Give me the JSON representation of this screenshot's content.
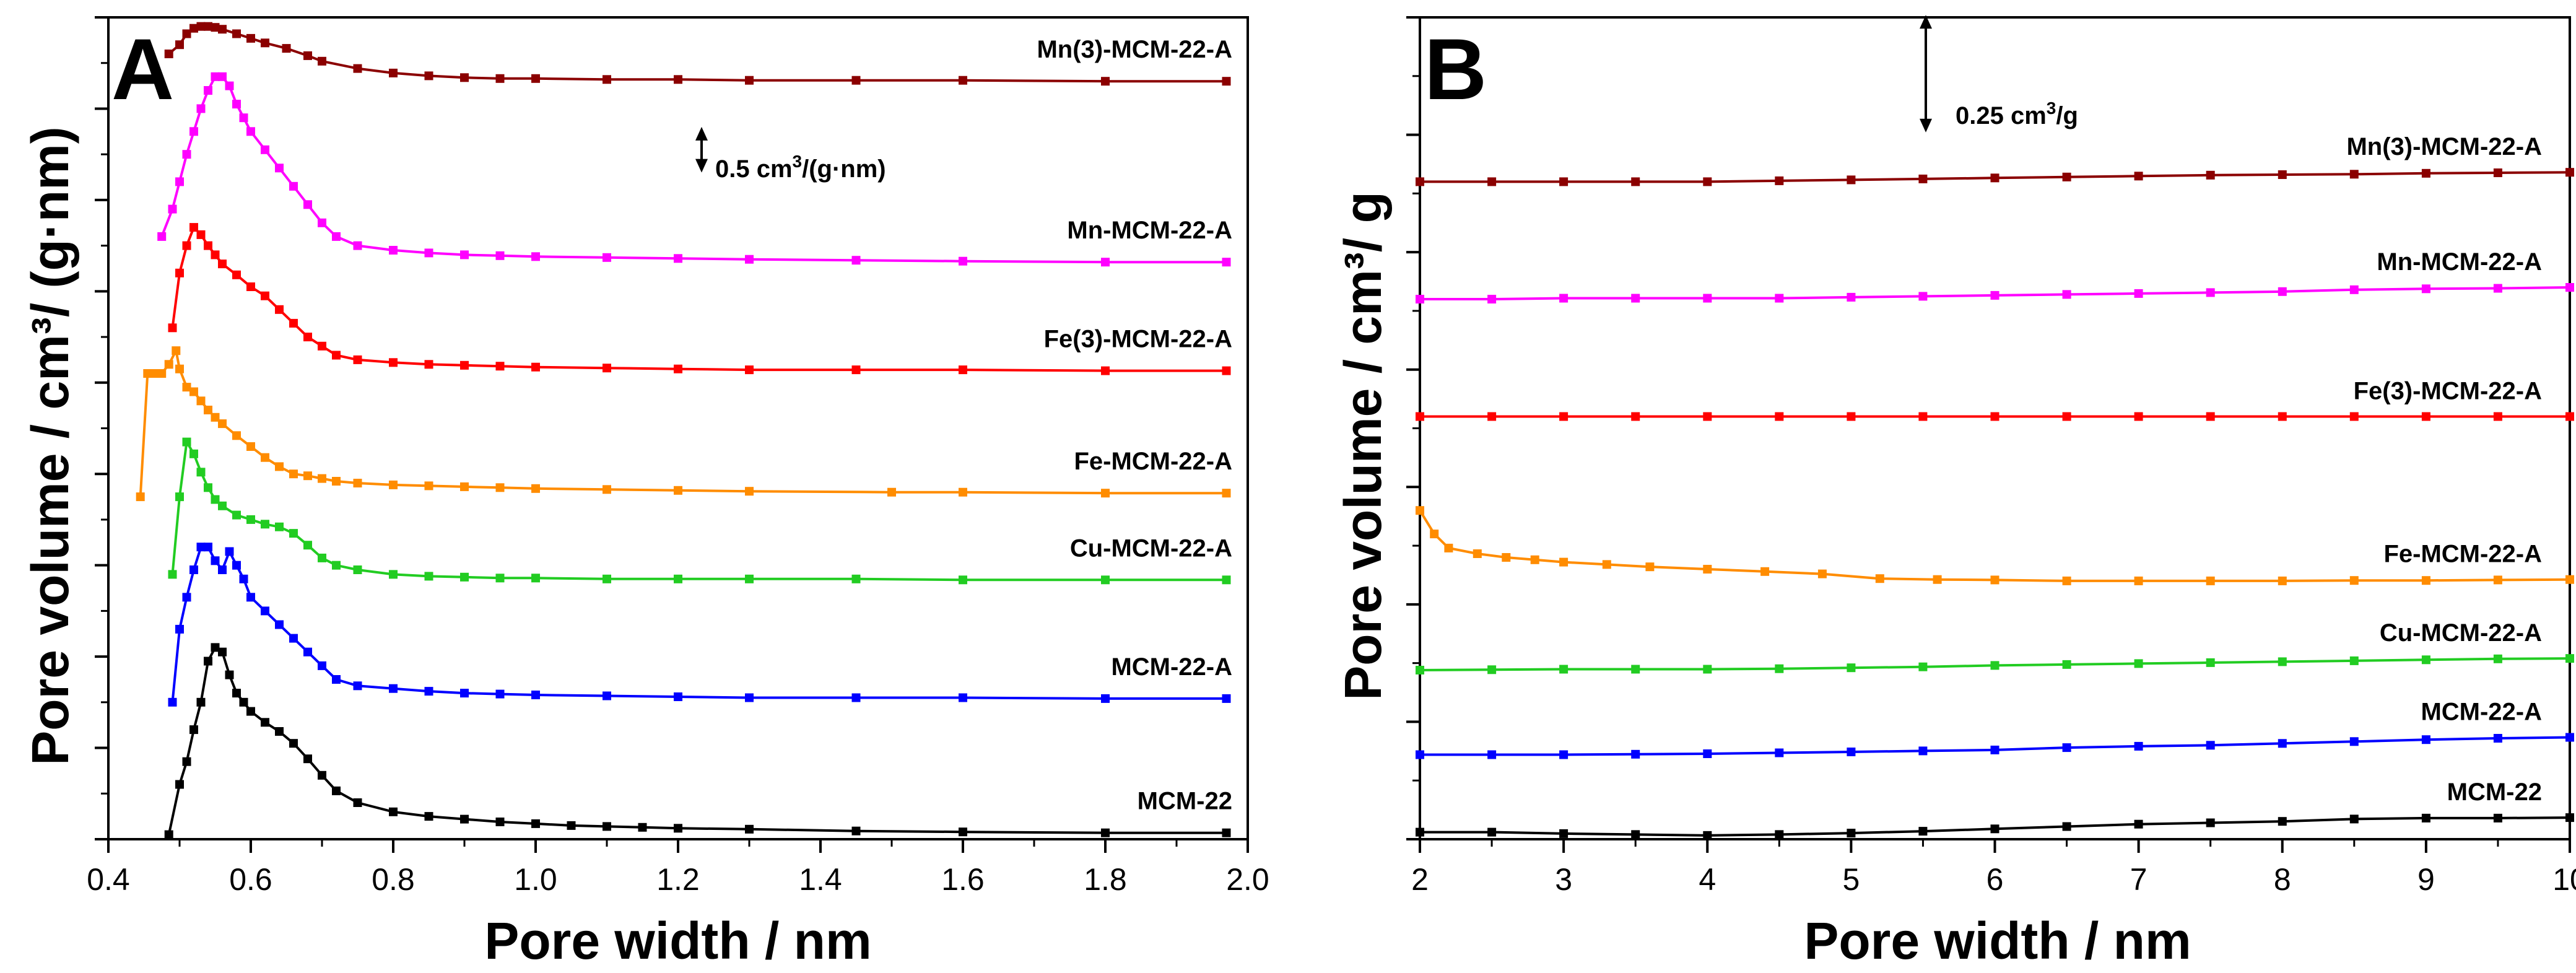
{
  "chart_data": [
    {
      "panel": "A",
      "type": "line",
      "xlabel": "Pore width / nm",
      "ylabel": "Pore volume / cm³/ (g·nm)",
      "xlim": [
        0.4,
        2.0
      ],
      "xticks": [
        "0.4",
        "0.6",
        "0.8",
        "1.0",
        "1.2",
        "1.4",
        "1.6",
        "1.8",
        "2.0"
      ],
      "ylim": [
        0,
        9
      ],
      "y_tick_labels_shown": false,
      "scale_bar": {
        "label_prefix": "0.5 cm",
        "superscript": "3",
        "label_suffix": "/(g·nm)",
        "value": 0.5
      },
      "series": [
        {
          "name": "MCM-22",
          "color": "#000000",
          "x": [
            0.485,
            0.5,
            0.51,
            0.52,
            0.53,
            0.54,
            0.55,
            0.56,
            0.57,
            0.58,
            0.59,
            0.6,
            0.62,
            0.64,
            0.66,
            0.68,
            0.7,
            0.72,
            0.75,
            0.8,
            0.85,
            0.9,
            0.95,
            1.0,
            1.05,
            1.1,
            1.15,
            1.2,
            1.3,
            1.45,
            1.6,
            1.8,
            1.97
          ],
          "y": [
            0.05,
            0.6,
            0.85,
            1.2,
            1.5,
            1.95,
            2.1,
            2.05,
            1.8,
            1.6,
            1.5,
            1.4,
            1.28,
            1.18,
            1.05,
            0.88,
            0.7,
            0.53,
            0.4,
            0.3,
            0.25,
            0.22,
            0.19,
            0.17,
            0.15,
            0.14,
            0.13,
            0.12,
            0.11,
            0.09,
            0.08,
            0.07,
            0.07
          ]
        },
        {
          "name": "MCM-22-A",
          "color": "#0000ff",
          "x": [
            0.49,
            0.5,
            0.51,
            0.52,
            0.53,
            0.54,
            0.55,
            0.56,
            0.57,
            0.58,
            0.59,
            0.6,
            0.62,
            0.64,
            0.66,
            0.68,
            0.7,
            0.72,
            0.75,
            0.8,
            0.85,
            0.9,
            0.95,
            1.0,
            1.1,
            1.2,
            1.3,
            1.45,
            1.6,
            1.8,
            1.97
          ],
          "y": [
            1.5,
            2.3,
            2.65,
            2.95,
            3.2,
            3.2,
            3.05,
            2.95,
            3.15,
            3.0,
            2.85,
            2.65,
            2.5,
            2.35,
            2.2,
            2.05,
            1.9,
            1.75,
            1.68,
            1.65,
            1.62,
            1.6,
            1.59,
            1.58,
            1.57,
            1.56,
            1.55,
            1.55,
            1.55,
            1.54,
            1.54
          ]
        },
        {
          "name": "Cu-MCM-22-A",
          "color": "#22cc22",
          "x": [
            0.49,
            0.5,
            0.51,
            0.52,
            0.53,
            0.54,
            0.55,
            0.56,
            0.58,
            0.6,
            0.62,
            0.64,
            0.66,
            0.68,
            0.7,
            0.72,
            0.75,
            0.8,
            0.85,
            0.9,
            0.95,
            1.0,
            1.1,
            1.2,
            1.3,
            1.45,
            1.6,
            1.8,
            1.97
          ],
          "y": [
            2.9,
            3.75,
            4.35,
            4.22,
            4.02,
            3.85,
            3.72,
            3.65,
            3.55,
            3.5,
            3.45,
            3.42,
            3.35,
            3.22,
            3.08,
            3.0,
            2.95,
            2.9,
            2.88,
            2.87,
            2.86,
            2.86,
            2.85,
            2.85,
            2.85,
            2.85,
            2.84,
            2.84,
            2.84
          ]
        },
        {
          "name": "Fe-MCM-22-A",
          "color": "#ff8c00",
          "x": [
            0.445,
            0.455,
            0.465,
            0.475,
            0.485,
            0.495,
            0.5,
            0.51,
            0.52,
            0.53,
            0.54,
            0.55,
            0.56,
            0.58,
            0.6,
            0.62,
            0.64,
            0.66,
            0.68,
            0.7,
            0.72,
            0.75,
            0.8,
            0.85,
            0.9,
            0.95,
            1.0,
            1.1,
            1.2,
            1.3,
            1.5,
            1.6,
            1.8,
            1.97
          ],
          "y": [
            3.75,
            5.1,
            5.1,
            5.1,
            5.2,
            5.35,
            5.15,
            4.95,
            4.9,
            4.8,
            4.7,
            4.62,
            4.55,
            4.42,
            4.3,
            4.18,
            4.08,
            4.0,
            3.98,
            3.95,
            3.92,
            3.9,
            3.88,
            3.87,
            3.86,
            3.85,
            3.84,
            3.83,
            3.82,
            3.81,
            3.8,
            3.8,
            3.79,
            3.79
          ]
        },
        {
          "name": "Fe(3)-MCM-22-A",
          "color": "#ff0000",
          "x": [
            0.49,
            0.5,
            0.51,
            0.52,
            0.53,
            0.54,
            0.55,
            0.56,
            0.58,
            0.6,
            0.62,
            0.64,
            0.66,
            0.68,
            0.7,
            0.72,
            0.75,
            0.8,
            0.85,
            0.9,
            0.95,
            1.0,
            1.1,
            1.2,
            1.3,
            1.45,
            1.6,
            1.8,
            1.97
          ],
          "y": [
            5.6,
            6.2,
            6.5,
            6.7,
            6.62,
            6.5,
            6.4,
            6.3,
            6.18,
            6.05,
            5.95,
            5.8,
            5.65,
            5.5,
            5.4,
            5.3,
            5.25,
            5.22,
            5.2,
            5.19,
            5.18,
            5.17,
            5.16,
            5.15,
            5.14,
            5.14,
            5.14,
            5.13,
            5.13
          ]
        },
        {
          "name": "Mn-MCM-22-A",
          "color": "#ff00ff",
          "x": [
            0.475,
            0.49,
            0.5,
            0.51,
            0.52,
            0.53,
            0.54,
            0.55,
            0.56,
            0.57,
            0.58,
            0.59,
            0.6,
            0.62,
            0.64,
            0.66,
            0.68,
            0.7,
            0.72,
            0.75,
            0.8,
            0.85,
            0.9,
            0.95,
            1.0,
            1.1,
            1.2,
            1.3,
            1.45,
            1.6,
            1.8,
            1.97
          ],
          "y": [
            6.6,
            6.9,
            7.2,
            7.5,
            7.75,
            8.0,
            8.2,
            8.35,
            8.35,
            8.25,
            8.05,
            7.9,
            7.75,
            7.55,
            7.35,
            7.15,
            6.95,
            6.75,
            6.6,
            6.5,
            6.45,
            6.42,
            6.4,
            6.39,
            6.38,
            6.37,
            6.36,
            6.35,
            6.34,
            6.33,
            6.32,
            6.32
          ]
        },
        {
          "name": "Mn(3)-MCM-22-A",
          "color": "#8b0000",
          "x": [
            0.485,
            0.5,
            0.51,
            0.52,
            0.53,
            0.54,
            0.55,
            0.56,
            0.58,
            0.6,
            0.62,
            0.65,
            0.68,
            0.7,
            0.75,
            0.8,
            0.85,
            0.9,
            0.95,
            1.0,
            1.1,
            1.2,
            1.3,
            1.45,
            1.6,
            1.8,
            1.97
          ],
          "y": [
            8.6,
            8.7,
            8.82,
            8.88,
            8.9,
            8.9,
            8.89,
            8.87,
            8.82,
            8.77,
            8.72,
            8.66,
            8.58,
            8.52,
            8.44,
            8.39,
            8.36,
            8.34,
            8.33,
            8.33,
            8.32,
            8.32,
            8.31,
            8.31,
            8.31,
            8.3,
            8.3
          ]
        }
      ]
    },
    {
      "panel": "B",
      "type": "line",
      "xlabel": "Pore width / nm",
      "ylabel": "Pore volume / cm³/ g",
      "xlim": [
        2,
        10
      ],
      "xticks": [
        "2",
        "3",
        "4",
        "5",
        "6",
        "7",
        "8",
        "9",
        "10"
      ],
      "ylim": [
        0,
        1.75
      ],
      "y_tick_labels_shown": false,
      "scale_bar": {
        "label_prefix": "0.25 cm",
        "superscript": "3",
        "label_suffix": "/g",
        "value": 0.25
      },
      "series": [
        {
          "name": "MCM-22",
          "color": "#000000",
          "x": [
            2.0,
            2.5,
            3.0,
            3.5,
            4.0,
            4.5,
            5.0,
            5.5,
            6.0,
            6.5,
            7.0,
            7.5,
            8.0,
            8.5,
            9.0,
            9.5,
            10.0
          ],
          "y": [
            0.015,
            0.015,
            0.012,
            0.01,
            0.008,
            0.01,
            0.013,
            0.017,
            0.022,
            0.027,
            0.032,
            0.035,
            0.038,
            0.043,
            0.045,
            0.045,
            0.046
          ]
        },
        {
          "name": "MCM-22-A",
          "color": "#0000ff",
          "x": [
            2.0,
            2.5,
            3.0,
            3.5,
            4.0,
            4.5,
            5.0,
            5.5,
            6.0,
            6.5,
            7.0,
            7.5,
            8.0,
            8.5,
            9.0,
            9.5,
            10.0
          ],
          "y": [
            0.18,
            0.18,
            0.18,
            0.181,
            0.182,
            0.184,
            0.186,
            0.188,
            0.19,
            0.195,
            0.198,
            0.2,
            0.204,
            0.208,
            0.212,
            0.215,
            0.217
          ]
        },
        {
          "name": "Cu-MCM-22-A",
          "color": "#22cc22",
          "x": [
            2.0,
            2.5,
            3.0,
            3.5,
            4.0,
            4.5,
            5.0,
            5.5,
            6.0,
            6.5,
            7.0,
            7.5,
            8.0,
            8.5,
            9.0,
            9.5,
            10.0
          ],
          "y": [
            0.36,
            0.361,
            0.362,
            0.362,
            0.362,
            0.363,
            0.365,
            0.367,
            0.37,
            0.372,
            0.374,
            0.376,
            0.378,
            0.38,
            0.382,
            0.384,
            0.385
          ]
        },
        {
          "name": "Fe-MCM-22-A",
          "color": "#ff8c00",
          "x": [
            2.0,
            2.1,
            2.2,
            2.4,
            2.6,
            2.8,
            3.0,
            3.3,
            3.6,
            4.0,
            4.4,
            4.8,
            5.2,
            5.6,
            6.0,
            6.5,
            7.0,
            7.5,
            8.0,
            8.5,
            9.0,
            9.5,
            10.0
          ],
          "y": [
            0.7,
            0.65,
            0.62,
            0.608,
            0.6,
            0.595,
            0.59,
            0.585,
            0.58,
            0.575,
            0.57,
            0.565,
            0.555,
            0.553,
            0.552,
            0.55,
            0.55,
            0.55,
            0.55,
            0.551,
            0.551,
            0.552,
            0.553
          ]
        },
        {
          "name": "Fe(3)-MCM-22-A",
          "color": "#ff0000",
          "x": [
            2.0,
            2.5,
            3.0,
            3.5,
            4.0,
            4.5,
            5.0,
            5.5,
            6.0,
            6.5,
            7.0,
            7.5,
            8.0,
            8.5,
            9.0,
            9.5,
            10.0
          ],
          "y": [
            0.9,
            0.9,
            0.9,
            0.9,
            0.9,
            0.9,
            0.9,
            0.9,
            0.9,
            0.9,
            0.9,
            0.9,
            0.9,
            0.9,
            0.9,
            0.9,
            0.9
          ]
        },
        {
          "name": "Mn-MCM-22-A",
          "color": "#ff00ff",
          "x": [
            2.0,
            2.5,
            3.0,
            3.5,
            4.0,
            4.5,
            5.0,
            5.5,
            6.0,
            6.5,
            7.0,
            7.5,
            8.0,
            8.5,
            9.0,
            9.5,
            10.0
          ],
          "y": [
            1.15,
            1.15,
            1.152,
            1.152,
            1.152,
            1.152,
            1.154,
            1.156,
            1.158,
            1.16,
            1.162,
            1.164,
            1.166,
            1.17,
            1.172,
            1.173,
            1.175
          ]
        },
        {
          "name": "Mn(3)-MCM-22-A",
          "color": "#8b0000",
          "x": [
            2.0,
            2.5,
            3.0,
            3.5,
            4.0,
            4.5,
            5.0,
            5.5,
            6.0,
            6.5,
            7.0,
            7.5,
            8.0,
            8.5,
            9.0,
            9.5,
            10.0
          ],
          "y": [
            1.4,
            1.4,
            1.4,
            1.4,
            1.4,
            1.402,
            1.404,
            1.406,
            1.408,
            1.41,
            1.412,
            1.414,
            1.415,
            1.416,
            1.418,
            1.419,
            1.42
          ]
        }
      ]
    }
  ]
}
